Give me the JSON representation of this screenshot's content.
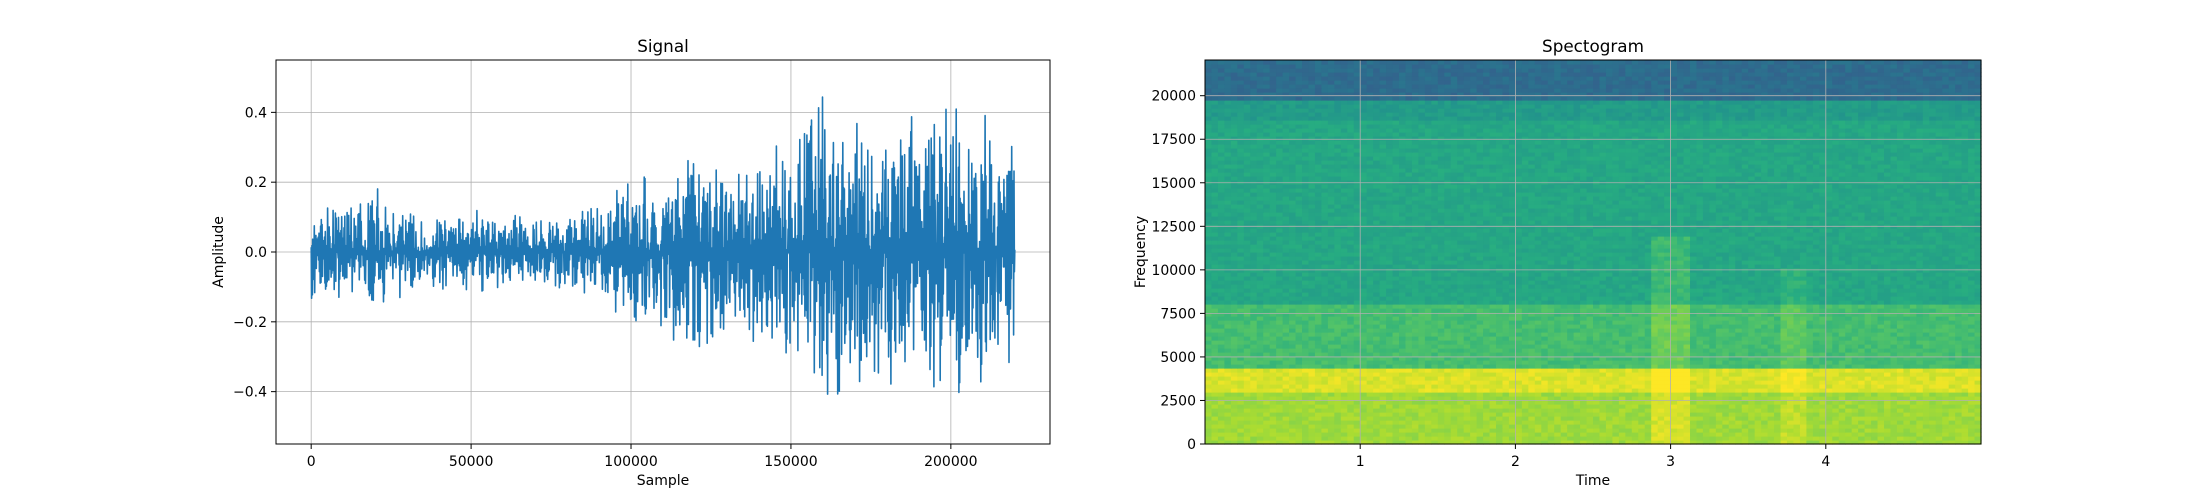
{
  "chart_data": [
    {
      "type": "line",
      "title": "Signal",
      "xlabel": "Sample",
      "ylabel": "Amplitude",
      "xlim": [
        -11000,
        231000
      ],
      "ylim": [
        -0.55,
        0.55
      ],
      "xticks": [
        0,
        50000,
        100000,
        150000,
        200000
      ],
      "xtick_labels": [
        "0",
        "50000",
        "100000",
        "150000",
        "200000"
      ],
      "yticks": [
        -0.4,
        -0.2,
        0.0,
        0.2,
        0.4
      ],
      "ytick_labels": [
        "−0.4",
        "−0.2",
        "0.0",
        "0.2",
        "0.4"
      ],
      "grid": true,
      "color": "#1f77b4",
      "x": [
        0,
        10000,
        20000,
        30000,
        40000,
        50000,
        60000,
        70000,
        80000,
        90000,
        100000,
        110000,
        120000,
        130000,
        140000,
        150000,
        160000,
        170000,
        180000,
        190000,
        200000,
        210000,
        220000
      ],
      "envelope_upper": [
        0.16,
        0.15,
        0.21,
        0.13,
        0.12,
        0.14,
        0.12,
        0.13,
        0.12,
        0.16,
        0.24,
        0.27,
        0.3,
        0.28,
        0.3,
        0.34,
        0.5,
        0.45,
        0.42,
        0.4,
        0.48,
        0.44,
        0.38
      ],
      "envelope_lower": [
        -0.16,
        -0.15,
        -0.2,
        -0.13,
        -0.12,
        -0.13,
        -0.12,
        -0.11,
        -0.12,
        -0.15,
        -0.22,
        -0.3,
        -0.33,
        -0.29,
        -0.31,
        -0.38,
        -0.5,
        -0.46,
        -0.42,
        -0.36,
        -0.47,
        -0.43,
        -0.36
      ]
    },
    {
      "type": "heatmap",
      "title": "Spectogram",
      "xlabel": "Time",
      "ylabel": "Frequency",
      "xlim": [
        0,
        5
      ],
      "ylim": [
        0,
        22050
      ],
      "xticks": [
        1,
        2,
        3,
        4
      ],
      "xtick_labels": [
        "1",
        "2",
        "3",
        "4"
      ],
      "yticks": [
        0,
        2500,
        5000,
        7500,
        10000,
        12500,
        15000,
        17500,
        20000
      ],
      "ytick_labels": [
        "0",
        "2500",
        "5000",
        "7500",
        "10000",
        "12500",
        "15000",
        "17500",
        "20000"
      ],
      "grid": true,
      "colormap": "viridis",
      "frequency_bands": [
        {
          "from": 0,
          "to": 3000,
          "level": 0.86
        },
        {
          "from": 3000,
          "to": 4300,
          "level": 0.95
        },
        {
          "from": 4300,
          "to": 8000,
          "level": 0.7
        },
        {
          "from": 8000,
          "to": 18500,
          "level": 0.6
        },
        {
          "from": 18500,
          "to": 19800,
          "level": 0.55
        },
        {
          "from": 19800,
          "to": 22050,
          "level": 0.36
        }
      ]
    }
  ]
}
